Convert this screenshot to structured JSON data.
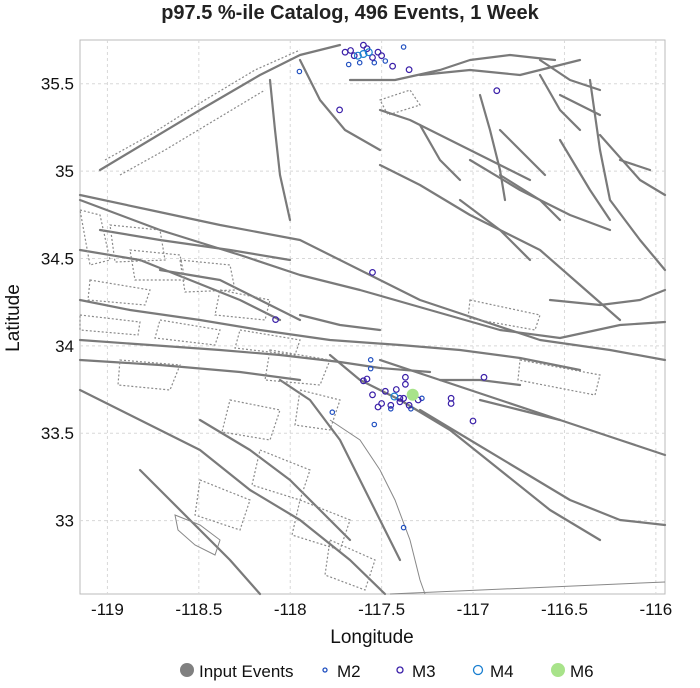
{
  "chart_data": {
    "type": "scatter",
    "title": "p97.5 %-ile Catalog, 496 Events, 1 Week",
    "xlabel": "Longitude",
    "ylabel": "Latitude",
    "xlim": [
      -119.15,
      -115.95
    ],
    "ylim": [
      32.58,
      35.75
    ],
    "x_ticks": [
      -119,
      -118.5,
      -118,
      -117.5,
      -117,
      -116.5,
      -116
    ],
    "y_ticks": [
      33,
      33.5,
      34,
      34.5,
      35,
      35.5
    ],
    "grid": true,
    "legend_position": "bottom",
    "legend": [
      {
        "label": "Input Events",
        "marker": "filled-circle",
        "color": "#808080"
      },
      {
        "label": "M2",
        "marker": "open-circle",
        "color": "#1f4fc0"
      },
      {
        "label": "M3",
        "marker": "open-circle",
        "color": "#3a1fa8"
      },
      {
        "label": "M4",
        "marker": "open-circle",
        "color": "#1a7fd0"
      },
      {
        "label": "M6",
        "marker": "filled-circle",
        "color": "#a8e38a"
      }
    ],
    "series": [
      {
        "name": "M6",
        "points": [
          [
            -117.33,
            33.72
          ]
        ]
      },
      {
        "name": "M4",
        "points": [
          [
            -117.6,
            35.67
          ],
          [
            -117.63,
            35.66
          ],
          [
            -117.57,
            35.68
          ],
          [
            -117.43,
            33.71
          ]
        ]
      },
      {
        "name": "M3",
        "points": [
          [
            -117.67,
            35.69
          ],
          [
            -117.58,
            35.7
          ],
          [
            -117.52,
            35.68
          ],
          [
            -117.65,
            35.66
          ],
          [
            -117.55,
            35.65
          ],
          [
            -117.7,
            35.68
          ],
          [
            -117.5,
            35.66
          ],
          [
            -117.6,
            35.72
          ],
          [
            -117.44,
            35.6
          ],
          [
            -117.35,
            35.58
          ],
          [
            -117.73,
            35.35
          ],
          [
            -116.87,
            35.46
          ],
          [
            -117.55,
            34.42
          ],
          [
            -118.08,
            34.15
          ],
          [
            -117.37,
            33.82
          ],
          [
            -117.37,
            33.78
          ],
          [
            -117.42,
            33.75
          ],
          [
            -117.48,
            33.74
          ],
          [
            -117.38,
            33.7
          ],
          [
            -117.4,
            33.68
          ],
          [
            -117.45,
            33.66
          ],
          [
            -117.5,
            33.67
          ],
          [
            -117.52,
            33.65
          ],
          [
            -117.35,
            33.66
          ],
          [
            -117.3,
            33.69
          ],
          [
            -117.55,
            33.72
          ],
          [
            -117.6,
            33.8
          ],
          [
            -117.58,
            33.81
          ],
          [
            -117.12,
            33.67
          ],
          [
            -117.12,
            33.7
          ],
          [
            -116.94,
            33.82
          ],
          [
            -117.0,
            33.57
          ],
          [
            -117.4,
            33.7
          ]
        ]
      },
      {
        "name": "M2",
        "points": [
          [
            -117.62,
            35.62
          ],
          [
            -117.48,
            35.63
          ],
          [
            -117.54,
            35.62
          ],
          [
            -117.95,
            35.57
          ],
          [
            -117.68,
            35.61
          ],
          [
            -117.38,
            35.71
          ],
          [
            -117.56,
            33.92
          ],
          [
            -117.56,
            33.87
          ],
          [
            -117.54,
            33.55
          ],
          [
            -117.77,
            33.62
          ],
          [
            -117.38,
            32.96
          ],
          [
            -117.45,
            33.64
          ],
          [
            -117.34,
            33.64
          ],
          [
            -117.28,
            33.7
          ]
        ]
      }
    ]
  }
}
